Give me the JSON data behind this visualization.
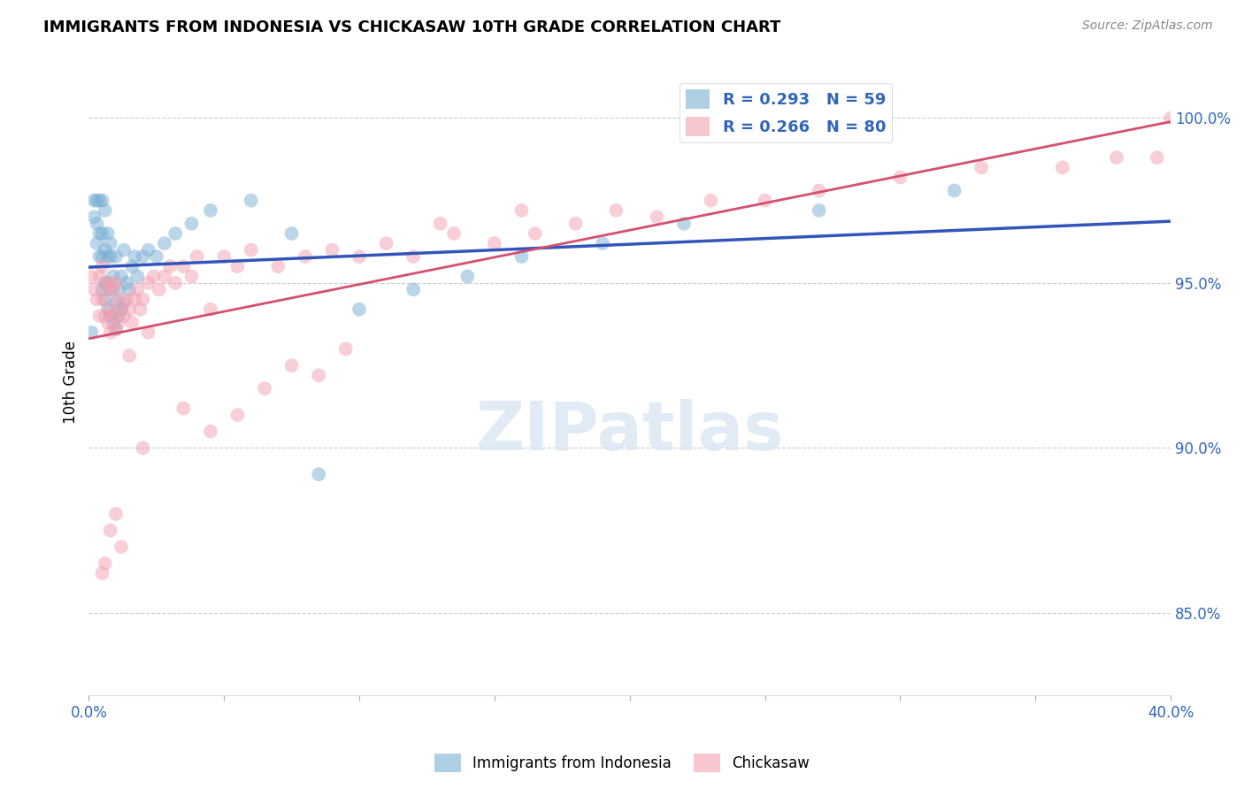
{
  "title": "IMMIGRANTS FROM INDONESIA VS CHICKASAW 10TH GRADE CORRELATION CHART",
  "source": "Source: ZipAtlas.com",
  "ylabel": "10th Grade",
  "yaxis_labels": [
    "100.0%",
    "95.0%",
    "90.0%",
    "85.0%"
  ],
  "yaxis_values": [
    1.0,
    0.95,
    0.9,
    0.85
  ],
  "xaxis_range": [
    0.0,
    0.4
  ],
  "yaxis_range": [
    0.825,
    1.015
  ],
  "legend_label1": "Immigrants from Indonesia",
  "legend_label2": "Chickasaw",
  "blue_color": "#7BAFD4",
  "pink_color": "#F4A0B0",
  "blue_line_color": "#3355BB",
  "pink_line_color": "#D45070",
  "blue_x": [
    0.001,
    0.002,
    0.002,
    0.003,
    0.003,
    0.003,
    0.004,
    0.004,
    0.004,
    0.005,
    0.005,
    0.005,
    0.005,
    0.006,
    0.006,
    0.006,
    0.006,
    0.007,
    0.007,
    0.007,
    0.007,
    0.008,
    0.008,
    0.008,
    0.008,
    0.009,
    0.009,
    0.01,
    0.01,
    0.01,
    0.011,
    0.011,
    0.012,
    0.012,
    0.013,
    0.013,
    0.014,
    0.015,
    0.016,
    0.017,
    0.018,
    0.02,
    0.022,
    0.025,
    0.028,
    0.032,
    0.038,
    0.045,
    0.06,
    0.075,
    0.085,
    0.1,
    0.12,
    0.14,
    0.16,
    0.19,
    0.22,
    0.27,
    0.32
  ],
  "blue_y": [
    0.935,
    0.97,
    0.975,
    0.962,
    0.968,
    0.975,
    0.958,
    0.965,
    0.975,
    0.948,
    0.958,
    0.965,
    0.975,
    0.945,
    0.95,
    0.96,
    0.972,
    0.942,
    0.95,
    0.958,
    0.965,
    0.94,
    0.948,
    0.958,
    0.962,
    0.938,
    0.952,
    0.936,
    0.944,
    0.958,
    0.94,
    0.948,
    0.942,
    0.952,
    0.944,
    0.96,
    0.95,
    0.948,
    0.955,
    0.958,
    0.952,
    0.958,
    0.96,
    0.958,
    0.962,
    0.965,
    0.968,
    0.972,
    0.975,
    0.965,
    0.892,
    0.942,
    0.948,
    0.952,
    0.958,
    0.962,
    0.968,
    0.972,
    0.978
  ],
  "pink_x": [
    0.001,
    0.002,
    0.003,
    0.004,
    0.004,
    0.005,
    0.005,
    0.006,
    0.006,
    0.007,
    0.007,
    0.008,
    0.008,
    0.008,
    0.009,
    0.009,
    0.01,
    0.01,
    0.011,
    0.011,
    0.012,
    0.013,
    0.014,
    0.015,
    0.016,
    0.017,
    0.018,
    0.019,
    0.02,
    0.022,
    0.024,
    0.026,
    0.028,
    0.03,
    0.032,
    0.035,
    0.038,
    0.04,
    0.045,
    0.05,
    0.055,
    0.06,
    0.07,
    0.08,
    0.09,
    0.1,
    0.11,
    0.12,
    0.135,
    0.15,
    0.165,
    0.18,
    0.195,
    0.21,
    0.23,
    0.25,
    0.27,
    0.3,
    0.33,
    0.36,
    0.38,
    0.395,
    0.4,
    0.13,
    0.16,
    0.02,
    0.035,
    0.045,
    0.055,
    0.065,
    0.075,
    0.085,
    0.095,
    0.015,
    0.022,
    0.005,
    0.01,
    0.008,
    0.012,
    0.006
  ],
  "pink_y": [
    0.952,
    0.948,
    0.945,
    0.94,
    0.952,
    0.945,
    0.955,
    0.94,
    0.95,
    0.938,
    0.948,
    0.935,
    0.942,
    0.95,
    0.94,
    0.948,
    0.936,
    0.95,
    0.938,
    0.945,
    0.942,
    0.94,
    0.945,
    0.942,
    0.938,
    0.945,
    0.948,
    0.942,
    0.945,
    0.95,
    0.952,
    0.948,
    0.952,
    0.955,
    0.95,
    0.955,
    0.952,
    0.958,
    0.942,
    0.958,
    0.955,
    0.96,
    0.955,
    0.958,
    0.96,
    0.958,
    0.962,
    0.958,
    0.965,
    0.962,
    0.965,
    0.968,
    0.972,
    0.97,
    0.975,
    0.975,
    0.978,
    0.982,
    0.985,
    0.985,
    0.988,
    0.988,
    1.0,
    0.968,
    0.972,
    0.9,
    0.912,
    0.905,
    0.91,
    0.918,
    0.925,
    0.922,
    0.93,
    0.928,
    0.935,
    0.862,
    0.88,
    0.875,
    0.87,
    0.865
  ]
}
